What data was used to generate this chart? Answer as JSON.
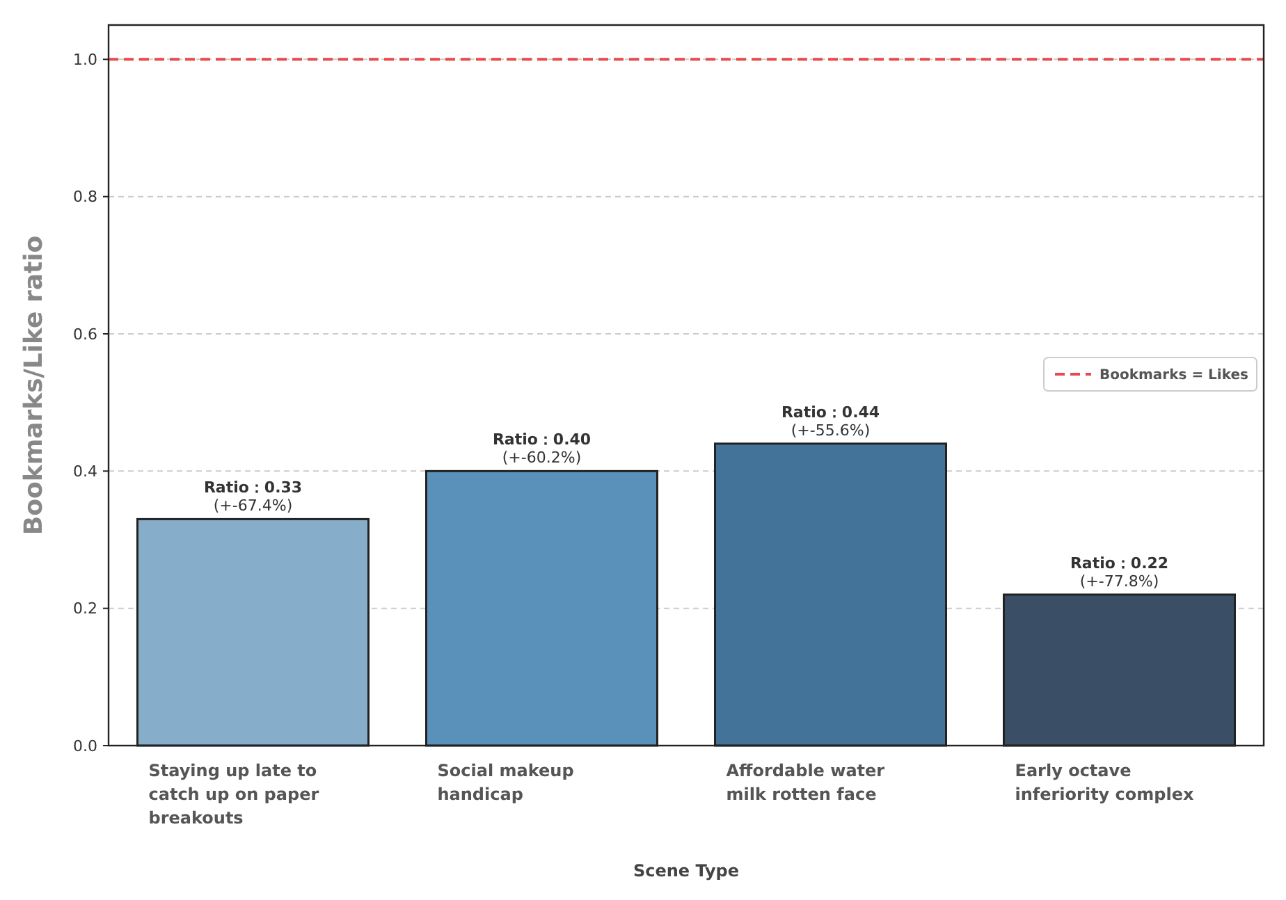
{
  "chart_data": {
    "type": "bar",
    "xlabel": "Scene Type",
    "ylabel": "Bookmarks/Like ratio",
    "categories": [
      "Staying up late to catch up on paper breakouts",
      "Social makeup handicap",
      "Affordable water milk rotten face",
      "Early octave inferiority complex"
    ],
    "values": [
      0.33,
      0.4,
      0.44,
      0.22
    ],
    "colors": [
      "#86adc9",
      "#5a91bb",
      "#44739a",
      "#3a4f66"
    ],
    "value_labels": [
      "Ratio：0.33\n(+-67.4%)",
      "Ratio：0.40\n(+-60.2%)",
      "Ratio：0.44\n(+-55.6%)",
      "Ratio：0.22\n(+-77.8%)"
    ],
    "ylim": [
      0,
      1.05
    ],
    "yticks": [
      {
        "value": 0,
        "label": "0.0"
      },
      {
        "value": 0.2,
        "label": "0.2"
      },
      {
        "value": 0.4,
        "label": "0.4"
      },
      {
        "value": 0.6,
        "label": "0.6"
      },
      {
        "value": 0.8,
        "label": "0.8"
      },
      {
        "value": 1,
        "label": "1.0"
      }
    ],
    "grid": "y",
    "legend": "right",
    "ref_lines": [
      {
        "axis": "y",
        "value": 1,
        "label": "Bookmarks = Likes",
        "color": "#e84a4a",
        "line_style": "dashed"
      }
    ]
  }
}
